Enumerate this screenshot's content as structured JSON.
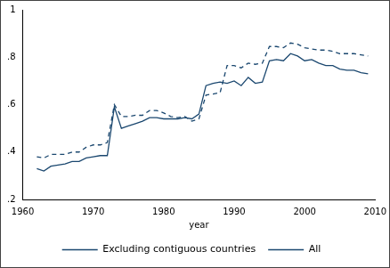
{
  "chart_data": {
    "type": "line",
    "x_label": "year",
    "x": [
      1962,
      1963,
      1964,
      1965,
      1966,
      1967,
      1968,
      1969,
      1970,
      1971,
      1972,
      1973,
      1974,
      1975,
      1976,
      1977,
      1978,
      1979,
      1980,
      1981,
      1982,
      1983,
      1984,
      1985,
      1986,
      1987,
      1988,
      1989,
      1990,
      1991,
      1992,
      1993,
      1994,
      1995,
      1996,
      1997,
      1998,
      1999,
      2000,
      2001,
      2002,
      2003,
      2004,
      2005,
      2006,
      2007,
      2008,
      2009
    ],
    "series": [
      {
        "name": "Excluding contiguous countries",
        "color": "#1a476f",
        "line_style": "solid",
        "values": [
          0.33,
          0.32,
          0.34,
          0.345,
          0.35,
          0.36,
          0.36,
          0.375,
          0.38,
          0.385,
          0.385,
          0.59,
          0.5,
          0.51,
          0.52,
          0.53,
          0.545,
          0.545,
          0.54,
          0.54,
          0.54,
          0.545,
          0.54,
          0.56,
          0.68,
          0.69,
          0.695,
          0.69,
          0.7,
          0.68,
          0.715,
          0.69,
          0.695,
          0.785,
          0.79,
          0.785,
          0.815,
          0.805,
          0.785,
          0.79,
          0.775,
          0.765,
          0.765,
          0.75,
          0.745,
          0.745,
          0.735,
          0.73
        ]
      },
      {
        "name": "All",
        "color": "#1a476f",
        "line_style": "dashed",
        "values": [
          0.38,
          0.375,
          0.39,
          0.39,
          0.39,
          0.4,
          0.4,
          0.42,
          0.43,
          0.43,
          0.44,
          0.6,
          0.55,
          0.55,
          0.555,
          0.555,
          0.575,
          0.575,
          0.565,
          0.55,
          0.545,
          0.55,
          0.53,
          0.54,
          0.64,
          0.645,
          0.65,
          0.765,
          0.765,
          0.755,
          0.775,
          0.77,
          0.775,
          0.845,
          0.845,
          0.84,
          0.86,
          0.855,
          0.84,
          0.835,
          0.83,
          0.83,
          0.825,
          0.815,
          0.815,
          0.815,
          0.81,
          0.805
        ]
      }
    ],
    "xlim": [
      1960,
      2010
    ],
    "xticks": [
      1960,
      1970,
      1980,
      1990,
      2000,
      2010
    ],
    "ylim": [
      0.2,
      1
    ],
    "yticks": [
      {
        "value": 0.2,
        "label": ".2"
      },
      {
        "value": 0.4,
        "label": ".4"
      },
      {
        "value": 0.6,
        "label": ".6"
      },
      {
        "value": 0.8,
        "label": ".8"
      },
      1
    ],
    "grid": false,
    "legend": "bottom"
  }
}
